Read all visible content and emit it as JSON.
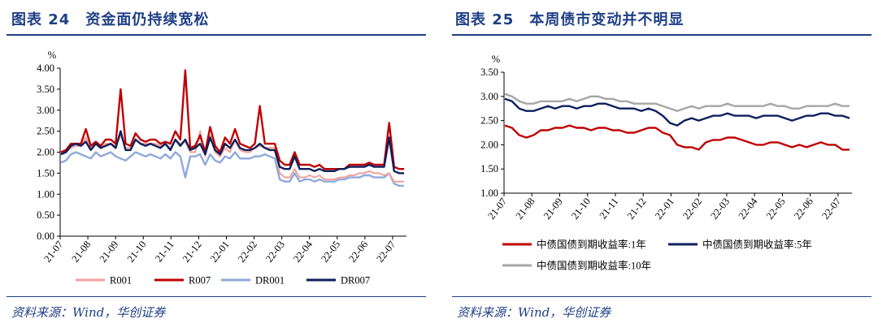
{
  "left_panel": {
    "title": "图表 24　资金面仍持续宽松",
    "source": "资料来源：Wind，华创证券"
  },
  "right_panel": {
    "title": "图表 25　本周债市变动并不明显",
    "source": "资料来源：Wind，华创证券"
  },
  "chart_data": [
    {
      "type": "line",
      "ylabel": "%",
      "ylim": [
        0,
        4
      ],
      "yticks": [
        "4.00",
        "3.50",
        "3.00",
        "2.50",
        "2.00",
        "1.50",
        "1.00",
        "0.50",
        "0.00"
      ],
      "xticks": [
        "21-07",
        "21-08",
        "21-09",
        "21-10",
        "21-11",
        "21-12",
        "22-01",
        "22-02",
        "22-03",
        "22-04",
        "22-05",
        "22-06",
        "22-07"
      ],
      "grid": false,
      "legend": "bottom",
      "colors": {
        "R001": "#f4a09a",
        "R007": "#c00000",
        "DR001": "#8fa9dc",
        "DR007": "#0d1f5c"
      },
      "series": [
        {
          "name": "R001",
          "values": [
            2.0,
            2.0,
            2.1,
            2.15,
            2.15,
            2.35,
            2.1,
            2.2,
            2.1,
            2.2,
            2.2,
            2.15,
            2.4,
            2.1,
            2.1,
            2.3,
            2.2,
            2.2,
            2.2,
            2.2,
            2.15,
            2.2,
            2.1,
            2.3,
            2.2,
            2.25,
            2.0,
            2.0,
            2.5,
            1.9,
            2.4,
            2.0,
            1.9,
            2.1,
            2.0,
            2.3,
            2.05,
            2.0,
            2.0,
            2.1,
            2.15,
            2.1,
            2.1,
            2.1,
            1.5,
            1.4,
            1.4,
            1.6,
            1.4,
            1.4,
            1.45,
            1.4,
            1.45,
            1.35,
            1.35,
            1.35,
            1.4,
            1.4,
            1.45,
            1.45,
            1.5,
            1.5,
            1.55,
            1.5,
            1.5,
            1.45,
            1.5,
            1.3,
            1.3,
            1.3
          ]
        },
        {
          "name": "R007",
          "values": [
            2.0,
            2.05,
            2.2,
            2.2,
            2.2,
            2.55,
            2.15,
            2.25,
            2.15,
            2.3,
            2.3,
            2.2,
            3.5,
            2.2,
            2.15,
            2.45,
            2.3,
            2.25,
            2.3,
            2.3,
            2.2,
            2.25,
            2.2,
            2.5,
            2.3,
            3.95,
            2.1,
            2.15,
            2.4,
            2.0,
            2.6,
            2.15,
            2.0,
            2.35,
            2.2,
            2.55,
            2.2,
            2.15,
            2.1,
            2.2,
            3.1,
            2.2,
            2.2,
            2.2,
            1.8,
            1.7,
            1.7,
            2.0,
            1.7,
            1.7,
            1.7,
            1.65,
            1.7,
            1.6,
            1.6,
            1.6,
            1.6,
            1.6,
            1.7,
            1.7,
            1.7,
            1.7,
            1.75,
            1.7,
            1.7,
            1.7,
            2.7,
            1.65,
            1.6,
            1.6
          ]
        },
        {
          "name": "DR001",
          "values": [
            1.75,
            1.8,
            1.95,
            2.0,
            1.95,
            1.9,
            1.85,
            2.0,
            1.9,
            1.95,
            2.0,
            1.9,
            1.85,
            1.8,
            1.9,
            2.0,
            1.95,
            1.9,
            1.95,
            1.9,
            1.85,
            1.95,
            1.85,
            2.0,
            1.9,
            1.4,
            1.9,
            1.9,
            1.95,
            1.7,
            1.95,
            1.8,
            1.75,
            1.9,
            1.85,
            2.0,
            1.85,
            1.85,
            1.85,
            1.9,
            1.9,
            1.95,
            1.9,
            1.85,
            1.35,
            1.3,
            1.3,
            1.5,
            1.3,
            1.35,
            1.35,
            1.3,
            1.35,
            1.3,
            1.3,
            1.3,
            1.35,
            1.35,
            1.4,
            1.4,
            1.4,
            1.45,
            1.45,
            1.4,
            1.4,
            1.4,
            1.5,
            1.25,
            1.2,
            1.2
          ]
        },
        {
          "name": "DR007",
          "values": [
            1.95,
            2.0,
            2.15,
            2.2,
            2.15,
            2.25,
            2.05,
            2.2,
            2.1,
            2.15,
            2.2,
            2.1,
            2.5,
            2.05,
            2.05,
            2.3,
            2.2,
            2.15,
            2.2,
            2.15,
            2.1,
            2.2,
            2.05,
            2.3,
            2.15,
            2.3,
            2.05,
            2.1,
            2.2,
            1.95,
            2.35,
            2.05,
            1.95,
            2.2,
            2.1,
            2.3,
            2.1,
            2.05,
            2.05,
            2.1,
            2.2,
            2.1,
            2.05,
            2.05,
            1.65,
            1.6,
            1.6,
            1.9,
            1.6,
            1.6,
            1.6,
            1.55,
            1.6,
            1.55,
            1.55,
            1.55,
            1.6,
            1.6,
            1.65,
            1.65,
            1.65,
            1.65,
            1.7,
            1.65,
            1.65,
            1.65,
            2.35,
            1.55,
            1.5,
            1.5
          ]
        }
      ]
    },
    {
      "type": "line",
      "ylabel": "%",
      "ylim": [
        1,
        3.5
      ],
      "yticks": [
        "3.50",
        "3.00",
        "2.50",
        "2.00",
        "1.50",
        "1.00"
      ],
      "xticks": [
        "21-07",
        "21-08",
        "21-09",
        "21-10",
        "21-11",
        "21-12",
        "22-01",
        "22-02",
        "22-03",
        "22-04",
        "22-05",
        "22-06",
        "22-07"
      ],
      "grid": false,
      "legend": "bottom",
      "colors": {
        "1y": "#c00000",
        "5y": "#0d1f5c",
        "10y": "#a6a6a6"
      },
      "series": [
        {
          "name": "中债国债到期收益率:1年",
          "values": [
            2.4,
            2.35,
            2.2,
            2.15,
            2.2,
            2.3,
            2.3,
            2.35,
            2.35,
            2.4,
            2.35,
            2.35,
            2.3,
            2.35,
            2.35,
            2.3,
            2.3,
            2.25,
            2.25,
            2.3,
            2.35,
            2.35,
            2.25,
            2.2,
            2.0,
            1.95,
            1.95,
            1.9,
            2.05,
            2.1,
            2.1,
            2.15,
            2.15,
            2.1,
            2.05,
            2.0,
            2.0,
            2.05,
            2.05,
            2.0,
            1.95,
            2.0,
            1.95,
            2.0,
            2.05,
            2.0,
            2.0,
            1.9,
            1.9
          ]
        },
        {
          "name": "中债国债到期收益率:5年",
          "values": [
            2.95,
            2.9,
            2.75,
            2.7,
            2.7,
            2.75,
            2.8,
            2.75,
            2.8,
            2.8,
            2.75,
            2.8,
            2.8,
            2.85,
            2.85,
            2.8,
            2.75,
            2.75,
            2.75,
            2.7,
            2.75,
            2.7,
            2.6,
            2.45,
            2.4,
            2.5,
            2.55,
            2.5,
            2.55,
            2.6,
            2.6,
            2.65,
            2.6,
            2.6,
            2.6,
            2.55,
            2.6,
            2.6,
            2.6,
            2.55,
            2.5,
            2.55,
            2.6,
            2.6,
            2.65,
            2.65,
            2.6,
            2.6,
            2.55
          ]
        },
        {
          "name": "中债国债到期收益率:10年",
          "values": [
            3.05,
            3.0,
            2.9,
            2.85,
            2.85,
            2.9,
            2.9,
            2.9,
            2.9,
            2.95,
            2.9,
            2.95,
            3.0,
            3.0,
            2.95,
            2.95,
            2.9,
            2.9,
            2.85,
            2.85,
            2.85,
            2.85,
            2.8,
            2.75,
            2.7,
            2.75,
            2.8,
            2.75,
            2.8,
            2.8,
            2.8,
            2.85,
            2.8,
            2.8,
            2.8,
            2.8,
            2.8,
            2.85,
            2.8,
            2.8,
            2.75,
            2.75,
            2.8,
            2.8,
            2.8,
            2.8,
            2.85,
            2.8,
            2.8
          ]
        }
      ]
    }
  ]
}
